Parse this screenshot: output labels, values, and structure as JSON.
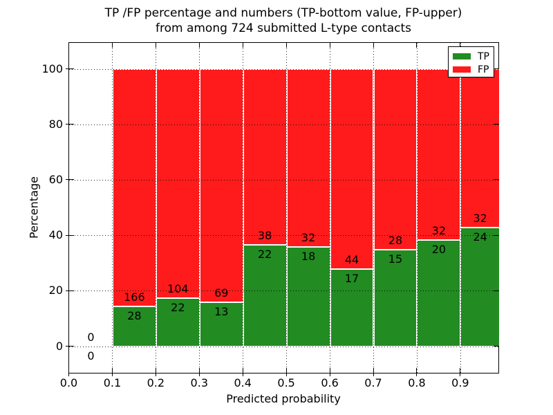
{
  "figure": {
    "title_line1": "TP /FP percentage and numbers (TP-bottom value, FP-upper)",
    "title_line2": "from among 724 submitted L-type contacts"
  },
  "legend": {
    "items": [
      {
        "label": "TP",
        "color": "#228B22"
      },
      {
        "label": "FP",
        "color": "#FF1B1B"
      }
    ]
  },
  "chart_data": {
    "type": "bar",
    "subtype": "stacked-percentage",
    "title": "TP /FP percentage and numbers (TP-bottom value, FP-upper) from among 724 submitted L-type contacts",
    "xlabel": "Predicted probability",
    "ylabel": "Percentage",
    "total_contacts": 724,
    "xlim": [
      0.0,
      0.99
    ],
    "ylim": [
      -10,
      110
    ],
    "x_ticks": [
      "0.0",
      "0.1",
      "0.2",
      "0.3",
      "0.4",
      "0.5",
      "0.6",
      "0.7",
      "0.8",
      "0.9"
    ],
    "y_ticks": [
      "0",
      "20",
      "40",
      "60",
      "80",
      "100"
    ],
    "grid": {
      "style": "dotted",
      "color": "#000000"
    },
    "legend_position": "upper right",
    "series": [
      {
        "name": "TP",
        "color": "#228B22",
        "position": "bottom"
      },
      {
        "name": "FP",
        "color": "#FF1B1B",
        "position": "top"
      }
    ],
    "bins": [
      {
        "x_range": [
          0.0,
          0.1
        ],
        "tp_count": 0,
        "fp_count": 0
      },
      {
        "x_range": [
          0.1,
          0.2
        ],
        "tp_count": 28,
        "fp_count": 166
      },
      {
        "x_range": [
          0.2,
          0.3
        ],
        "tp_count": 22,
        "fp_count": 104
      },
      {
        "x_range": [
          0.3,
          0.4
        ],
        "tp_count": 13,
        "fp_count": 69
      },
      {
        "x_range": [
          0.4,
          0.5
        ],
        "tp_count": 22,
        "fp_count": 38
      },
      {
        "x_range": [
          0.5,
          0.6
        ],
        "tp_count": 18,
        "fp_count": 32
      },
      {
        "x_range": [
          0.6,
          0.7
        ],
        "tp_count": 17,
        "fp_count": 44
      },
      {
        "x_range": [
          0.7,
          0.8
        ],
        "tp_count": 15,
        "fp_count": 28
      },
      {
        "x_range": [
          0.8,
          0.9
        ],
        "tp_count": 20,
        "fp_count": 32
      },
      {
        "x_range": [
          0.9,
          0.99
        ],
        "tp_count": 24,
        "fp_count": 32
      }
    ]
  }
}
